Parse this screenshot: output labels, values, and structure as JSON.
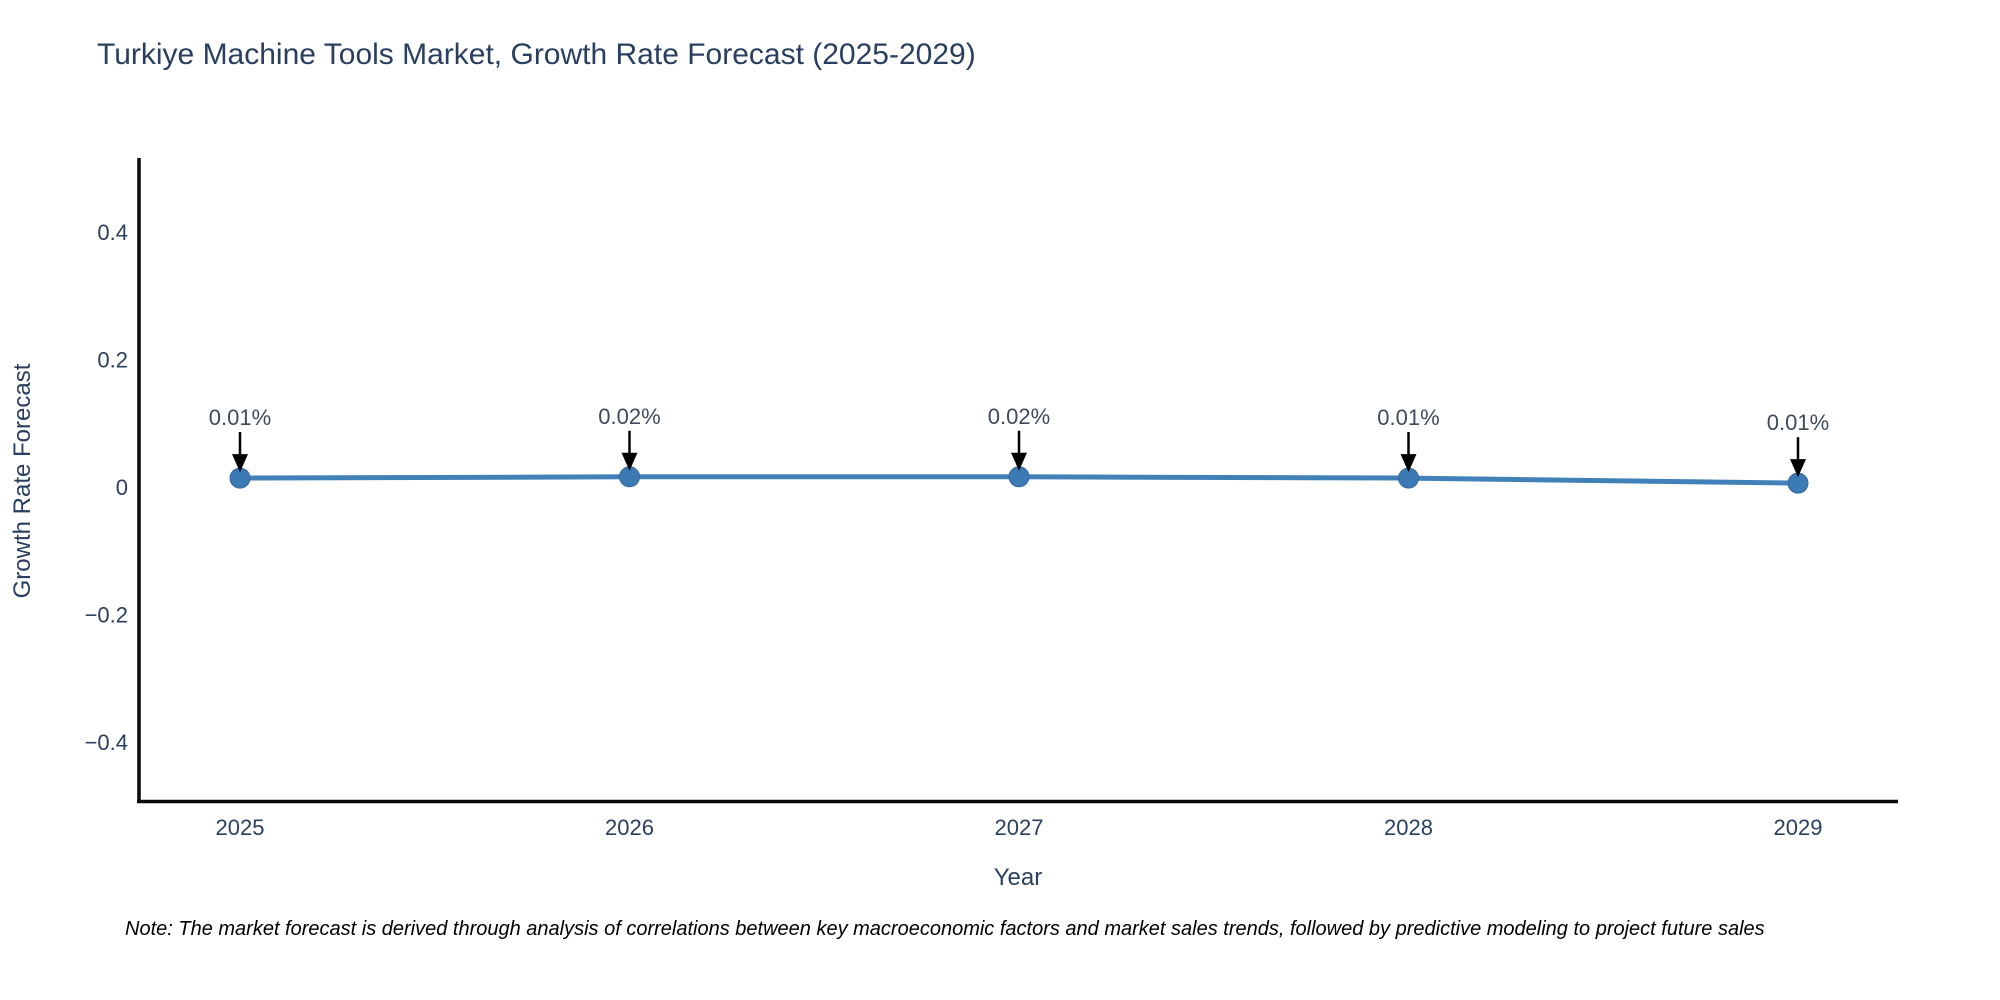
{
  "page": {
    "background": "#ffffff"
  },
  "note": {
    "text": "Note: The market forecast is derived through analysis of correlations between key macroeconomic factors and market sales trends, followed by predictive modeling to project future sales"
  },
  "chart_data": {
    "type": "line",
    "title": "Turkiye Machine Tools Market, Growth Rate Forecast (2025-2029)",
    "xlabel": "Year",
    "ylabel": "Growth Rate Forecast",
    "x": [
      2025,
      2026,
      2027,
      2028,
      2029
    ],
    "x_labels": [
      "2025",
      "2026",
      "2027",
      "2028",
      "2029"
    ],
    "values": [
      0.014,
      0.016,
      0.016,
      0.014,
      0.006
    ],
    "point_labels": [
      "0.01%",
      "0.02%",
      "0.02%",
      "0.01%",
      "0.01%"
    ],
    "yticks": {
      "values": [
        0.4,
        0.2,
        0,
        -0.2,
        -0.4
      ],
      "labels": [
        "0.4",
        "0.2",
        "0",
        "−0.2",
        "−0.4"
      ]
    },
    "ylim": [
      -0.49,
      0.51
    ],
    "grid": false,
    "legend": "none",
    "marker": "circle-with-down-arrow-annotation",
    "line_color": "#4181b7",
    "marker_color": "#3c7ab3",
    "marker_edge_color": "#35699e",
    "annotation_arrow_color": "#000000",
    "axis_line_color": "#0a0a0a",
    "text_color": "#2a3f5f",
    "annotation_text_color": "#404b5a"
  }
}
